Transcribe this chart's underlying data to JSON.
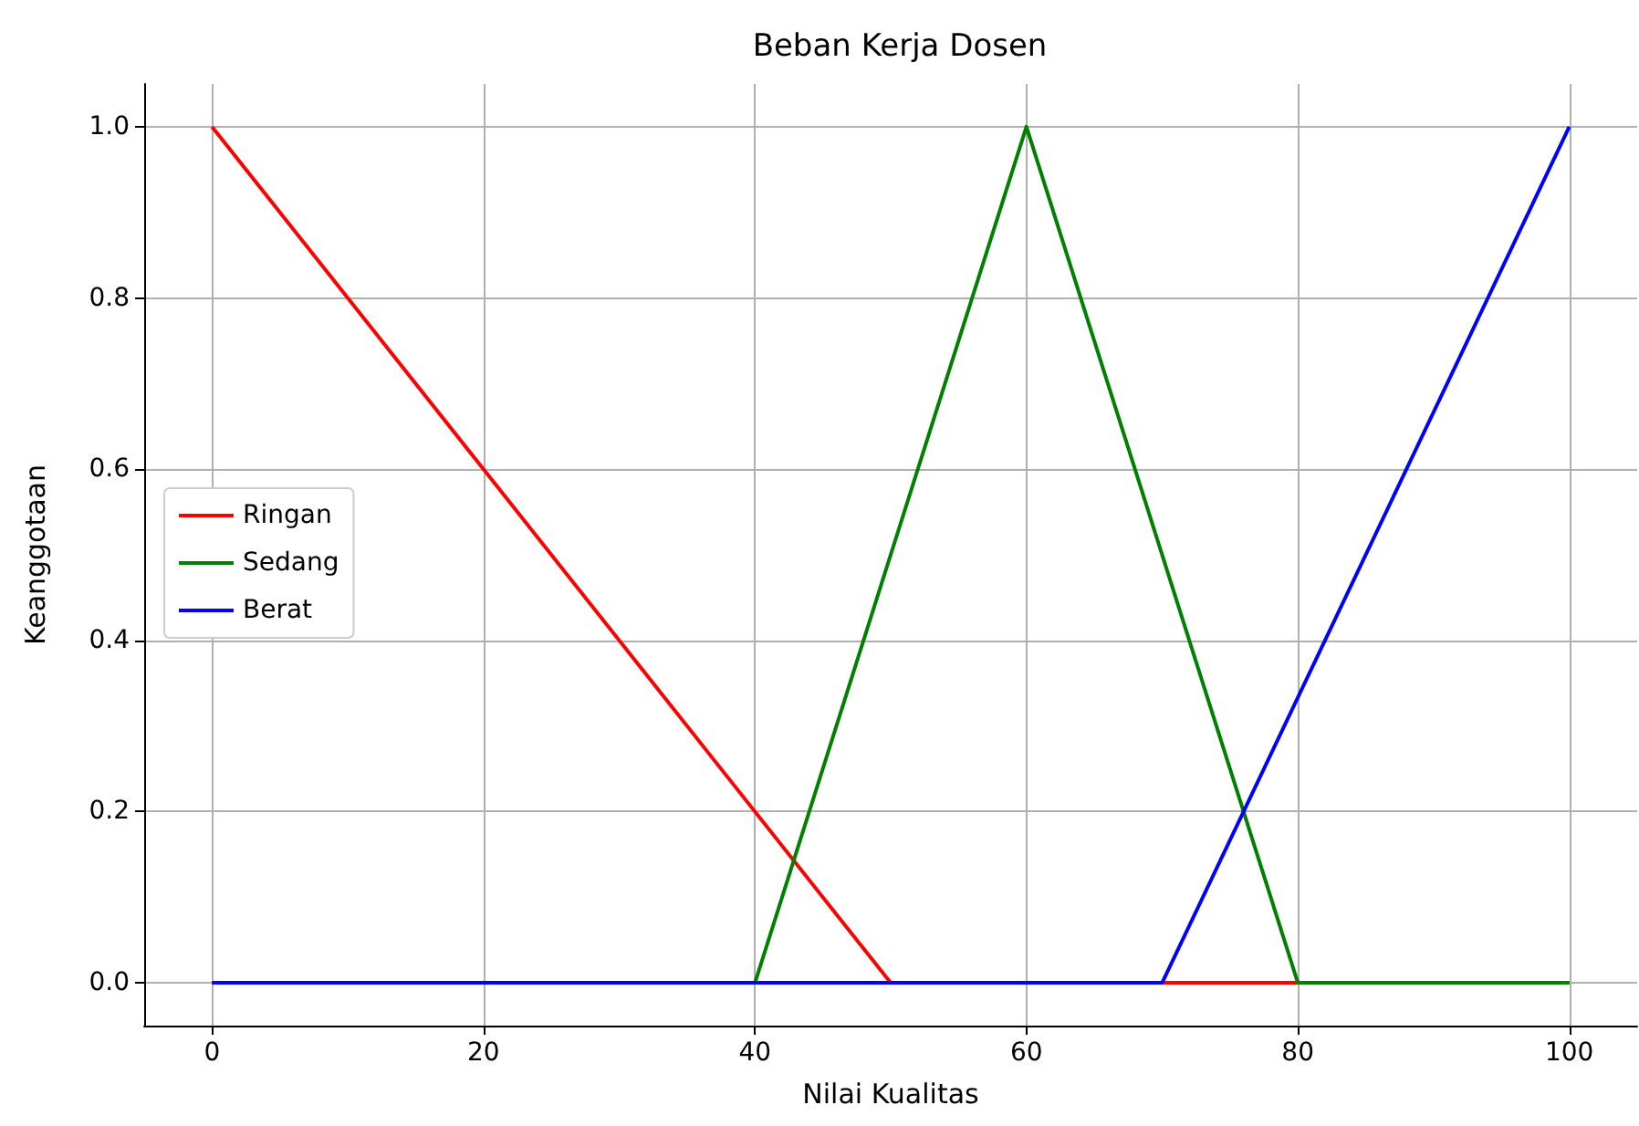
{
  "chart_data": {
    "type": "line",
    "title": "Beban Kerja Dosen",
    "xlabel": "Nilai Kualitas",
    "ylabel": "Keanggotaan",
    "xlim": [
      -5,
      105
    ],
    "xticks": [
      0,
      20,
      40,
      60,
      80,
      100
    ],
    "ylim": [
      -0.05,
      1.05
    ],
    "yticks": [
      {
        "value": 0,
        "label": "0.0"
      },
      0.2,
      0.4,
      0.6,
      0.8,
      {
        "value": 1,
        "label": "1.0"
      }
    ],
    "grid": true,
    "legend": "center left",
    "marker": "none",
    "line_style": "solid",
    "series": [
      {
        "name": "Ringan",
        "color": "#ff0000",
        "x": [
          0,
          50,
          100
        ],
        "values": [
          1,
          0,
          0
        ]
      },
      {
        "name": "Sedang",
        "color": "#008000",
        "x": [
          0,
          40,
          60,
          80,
          100
        ],
        "values": [
          0,
          0,
          1,
          0,
          0
        ]
      },
      {
        "name": "Berat",
        "color": "#0000ff",
        "x": [
          0,
          70,
          100
        ],
        "values": [
          0,
          0,
          1
        ]
      }
    ]
  }
}
